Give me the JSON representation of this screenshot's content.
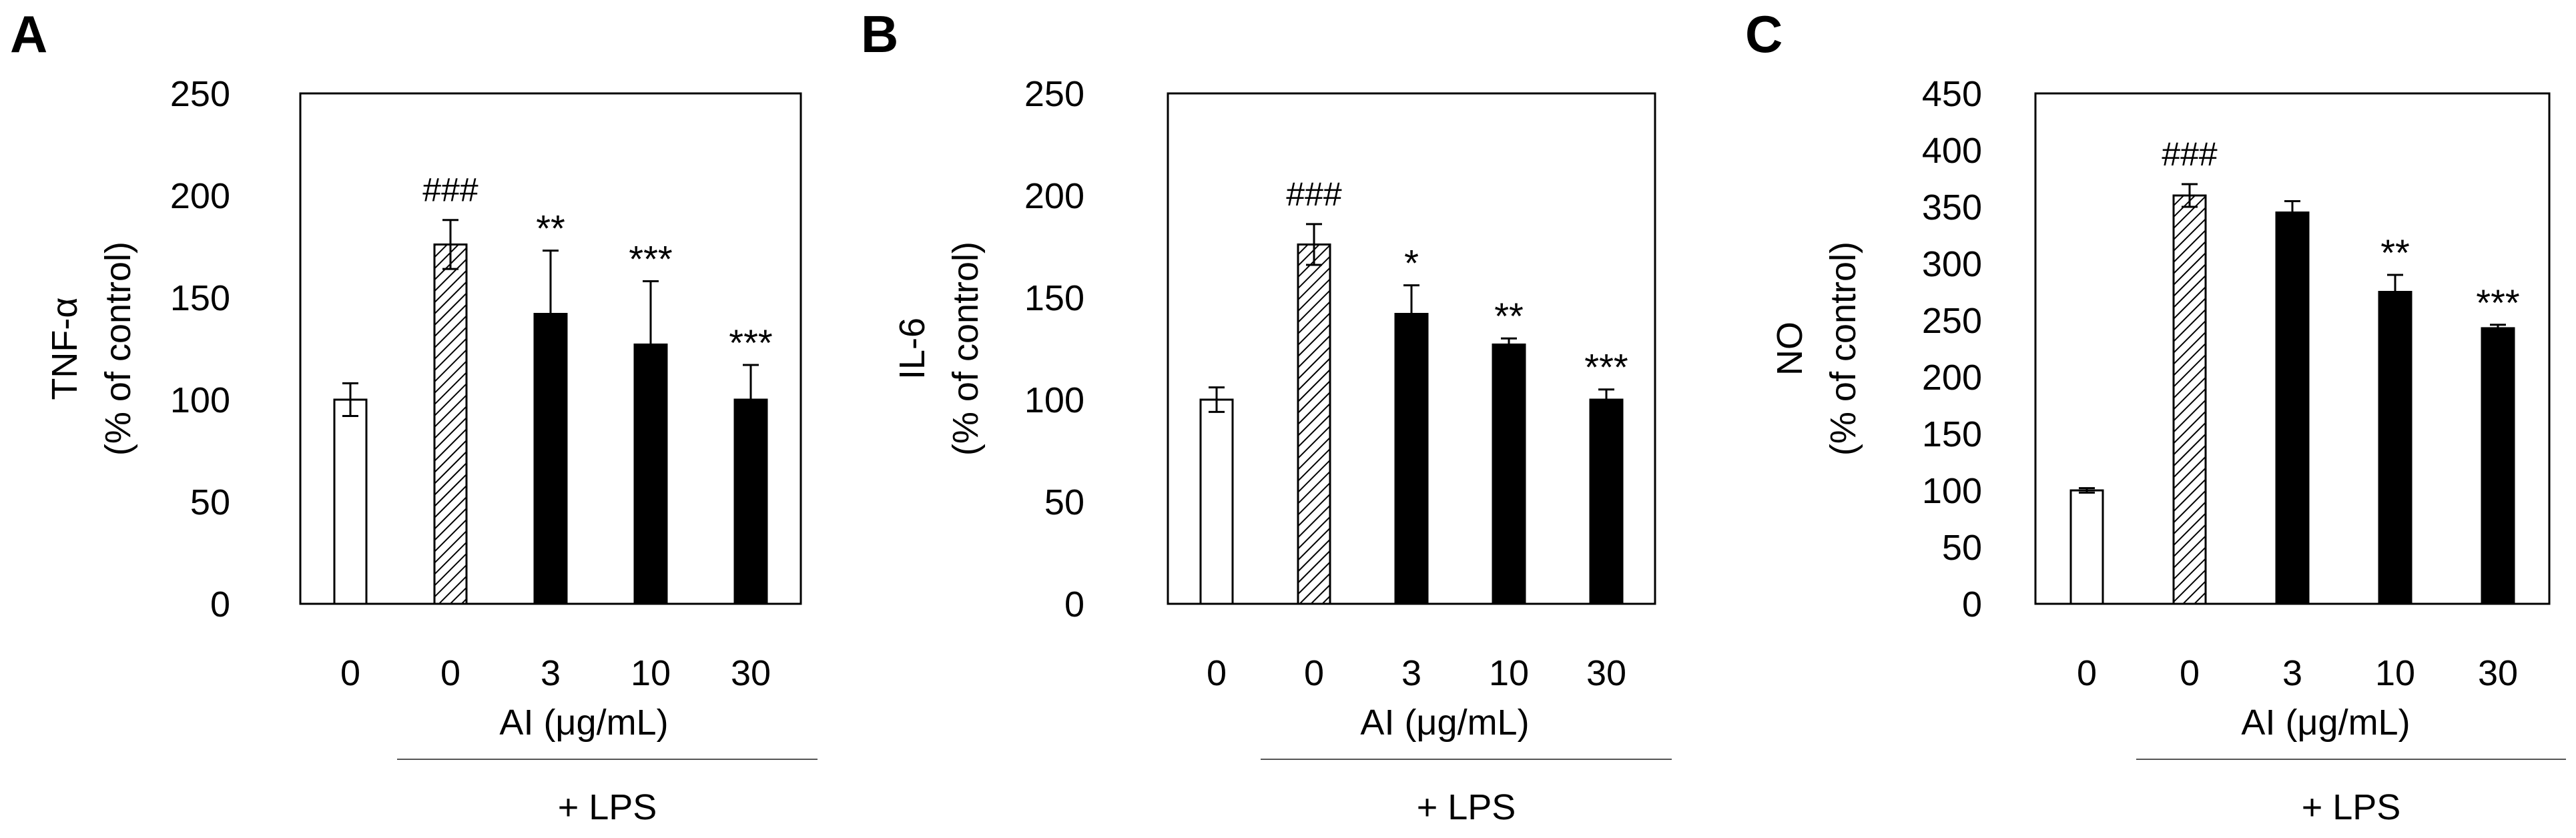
{
  "chart_data": [
    {
      "type": "bar",
      "panel_label": "A",
      "ylabel": "TNF-α",
      "ylabel_sub": "(% of control)",
      "xlabel": "AI (μg/mL)",
      "group_label": "+ LPS",
      "categories": [
        "0",
        "0",
        "3",
        "10",
        "30"
      ],
      "values": [
        100,
        176,
        142,
        127,
        100
      ],
      "errors": [
        8,
        12,
        31,
        31,
        17
      ],
      "fills": [
        "white",
        "hatched",
        "black",
        "black",
        "black"
      ],
      "annotations": [
        "",
        "###",
        "**",
        "***",
        "***"
      ],
      "ylim": [
        0,
        250
      ],
      "yticks": [
        "0",
        "50",
        "100",
        "150",
        "200",
        "250"
      ],
      "grid": false
    },
    {
      "type": "bar",
      "panel_label": "B",
      "ylabel": "IL-6",
      "ylabel_sub": "(% of control)",
      "xlabel": "AI (μg/mL)",
      "group_label": "+ LPS",
      "categories": [
        "0",
        "0",
        "3",
        "10",
        "30"
      ],
      "values": [
        100,
        176,
        142,
        127,
        100
      ],
      "errors": [
        6,
        10,
        14,
        3,
        5
      ],
      "fills": [
        "white",
        "hatched",
        "black",
        "black",
        "black"
      ],
      "annotations": [
        "",
        "###",
        "*",
        "**",
        "***"
      ],
      "ylim": [
        0,
        250
      ],
      "yticks": [
        "0",
        "50",
        "100",
        "150",
        "200",
        "250"
      ],
      "grid": false
    },
    {
      "type": "bar",
      "panel_label": "C",
      "ylabel": "NO",
      "ylabel_sub": "(% of control)",
      "xlabel": "AI (μg/mL)",
      "group_label": "+ LPS",
      "categories": [
        "0",
        "0",
        "3",
        "10",
        "30"
      ],
      "values": [
        100,
        360,
        345,
        275,
        243
      ],
      "errors": [
        2,
        10,
        10,
        15,
        3
      ],
      "fills": [
        "white",
        "hatched",
        "black",
        "black",
        "black"
      ],
      "annotations": [
        "",
        "###",
        "",
        "**",
        "***"
      ],
      "ylim": [
        0,
        450
      ],
      "yticks": [
        "0",
        "50",
        "100",
        "150",
        "200",
        "250",
        "300",
        "350",
        "400",
        "450"
      ],
      "grid": false
    }
  ],
  "colors": {
    "bar_black": "#000000",
    "bar_white": "#ffffff",
    "hatch": "#000000",
    "axis": "#000000"
  }
}
